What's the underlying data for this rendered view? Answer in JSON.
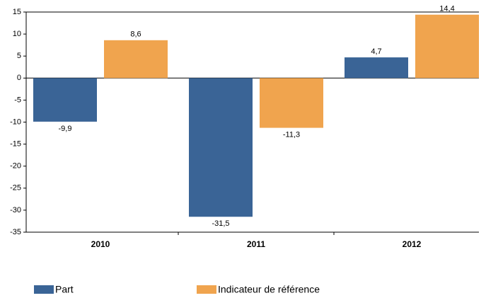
{
  "chart_data": {
    "type": "bar",
    "categories": [
      "2010",
      "2011",
      "2012"
    ],
    "series": [
      {
        "name": "Part",
        "color": "#3a6496",
        "values": [
          -9.9,
          -31.5,
          4.7
        ],
        "value_labels": [
          "-9,9",
          "-31,5",
          "4,7"
        ]
      },
      {
        "name": "Indicateur de référence",
        "color": "#f0a44e",
        "values": [
          8.6,
          -11.3,
          14.4
        ],
        "value_labels": [
          "8,6",
          "-11,3",
          "14,4"
        ]
      }
    ],
    "ylim": [
      -35,
      15
    ],
    "yticks": [
      -35,
      -30,
      -25,
      -20,
      -15,
      -10,
      -5,
      0,
      5,
      10,
      15
    ],
    "grid": false,
    "legend": "bottom"
  }
}
